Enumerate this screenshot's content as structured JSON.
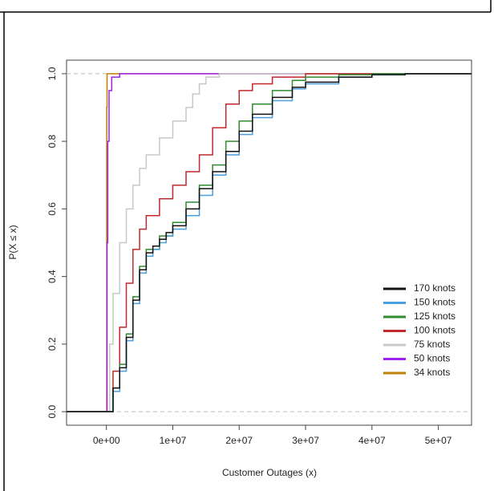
{
  "chart_data": {
    "type": "line",
    "step": true,
    "x_label": "Customer Outages (x)",
    "y_label": "P(X ≤ x)",
    "xlim": [
      -6000000,
      55000000
    ],
    "ylim": [
      -0.04,
      1.04
    ],
    "xticks": [
      {
        "value": 0,
        "label": "0e+00"
      },
      {
        "value": 10000000,
        "label": "1e+07"
      },
      {
        "value": 20000000,
        "label": "2e+07"
      },
      {
        "value": 30000000,
        "label": "3e+07"
      },
      {
        "value": 40000000,
        "label": "4e+07"
      },
      {
        "value": 50000000,
        "label": "5e+07"
      }
    ],
    "yticks": [
      {
        "value": 0,
        "label": "0.0"
      },
      0.2,
      0.4,
      0.6,
      0.8,
      {
        "value": 1,
        "label": "1.0"
      }
    ],
    "hlines": [
      0,
      1
    ],
    "legend": "bottomright",
    "series": [
      {
        "name": "170 knots",
        "color": "#111111",
        "x": [
          -6000000,
          0,
          1000000,
          2000000,
          3000000,
          4000000,
          5000000,
          6000000,
          7000000,
          8000000,
          9000000,
          10000000,
          12000000,
          14000000,
          16000000,
          18000000,
          20000000,
          22000000,
          25000000,
          28000000,
          30000000,
          35000000,
          40000000,
          45000000,
          55000000
        ],
        "values": [
          0,
          0,
          0.07,
          0.13,
          0.22,
          0.33,
          0.42,
          0.47,
          0.49,
          0.51,
          0.53,
          0.55,
          0.6,
          0.66,
          0.71,
          0.77,
          0.83,
          0.88,
          0.93,
          0.96,
          0.975,
          0.99,
          0.997,
          1,
          1
        ]
      },
      {
        "name": "150 knots",
        "color": "#4a9fe0",
        "x": [
          -6000000,
          0,
          1000000,
          2000000,
          3000000,
          4000000,
          5000000,
          6000000,
          7000000,
          8000000,
          9000000,
          10000000,
          12000000,
          14000000,
          16000000,
          18000000,
          20000000,
          22000000,
          25000000,
          28000000,
          30000000,
          35000000,
          40000000,
          45000000,
          55000000
        ],
        "values": [
          0,
          0,
          0.06,
          0.12,
          0.21,
          0.32,
          0.41,
          0.46,
          0.48,
          0.5,
          0.52,
          0.54,
          0.58,
          0.64,
          0.7,
          0.76,
          0.82,
          0.87,
          0.92,
          0.955,
          0.97,
          0.99,
          0.997,
          1,
          1
        ]
      },
      {
        "name": "125 knots",
        "color": "#2e8b2e",
        "x": [
          -6000000,
          0,
          1000000,
          2000000,
          3000000,
          4000000,
          5000000,
          6000000,
          8000000,
          10000000,
          12000000,
          14000000,
          16000000,
          18000000,
          20000000,
          22000000,
          25000000,
          28000000,
          30000000,
          35000000,
          40000000,
          55000000
        ],
        "values": [
          0,
          0,
          0.07,
          0.14,
          0.23,
          0.34,
          0.43,
          0.48,
          0.52,
          0.56,
          0.62,
          0.67,
          0.73,
          0.8,
          0.86,
          0.91,
          0.95,
          0.98,
          0.99,
          0.997,
          1,
          1
        ]
      },
      {
        "name": "100 knots",
        "color": "#c0282d",
        "x": [
          -6000000,
          0,
          1000000,
          2000000,
          3000000,
          4000000,
          5000000,
          6000000,
          8000000,
          10000000,
          12000000,
          14000000,
          16000000,
          18000000,
          20000000,
          22000000,
          25000000,
          30000000,
          55000000
        ],
        "values": [
          0,
          0,
          0.12,
          0.25,
          0.38,
          0.48,
          0.54,
          0.58,
          0.63,
          0.67,
          0.71,
          0.76,
          0.84,
          0.91,
          0.95,
          0.97,
          0.99,
          1,
          1
        ]
      },
      {
        "name": "75 knots",
        "color": "#c8c8c8",
        "x": [
          -6000000,
          0,
          500000,
          1000000,
          2000000,
          3000000,
          4000000,
          5000000,
          6000000,
          8000000,
          10000000,
          12000000,
          13000000,
          14000000,
          15000000,
          17000000,
          55000000
        ],
        "values": [
          0,
          0,
          0.2,
          0.35,
          0.5,
          0.6,
          0.67,
          0.72,
          0.76,
          0.81,
          0.86,
          0.9,
          0.94,
          0.97,
          0.99,
          1,
          1
        ]
      },
      {
        "name": "50 knots",
        "color": "#a020f0",
        "x": [
          -6000000,
          0,
          100000,
          200000,
          400000,
          800000,
          2000000,
          55000000
        ],
        "values": [
          0,
          0,
          0.5,
          0.8,
          0.95,
          0.99,
          1,
          1
        ]
      },
      {
        "name": "34 knots",
        "color": "#c08000",
        "x": [
          -6000000,
          0,
          50000,
          100000,
          55000000
        ],
        "values": [
          0,
          0,
          0.9,
          1,
          1
        ]
      }
    ]
  }
}
